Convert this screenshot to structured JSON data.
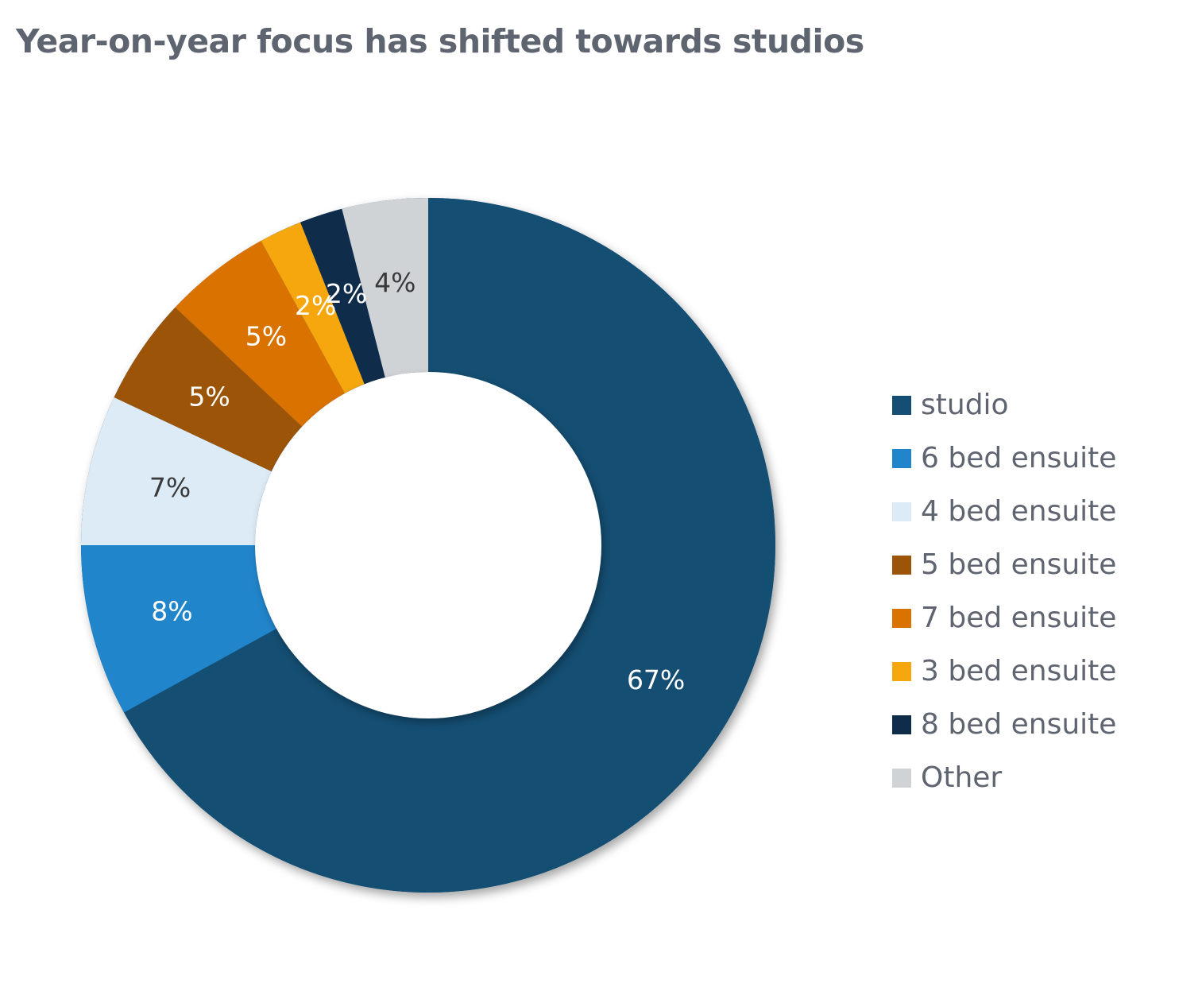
{
  "chart_data": {
    "type": "pie",
    "style": "donut",
    "title": "Year-on-year focus has shifted towards studios",
    "slices": [
      {
        "name": "studio",
        "value": 67,
        "label": "67%",
        "color": "#144e73",
        "label_color": "#ffffff"
      },
      {
        "name": "6 bed ensuite",
        "value": 8,
        "label": "8%",
        "color": "#2185cc",
        "label_color": "#ffffff"
      },
      {
        "name": "4 bed ensuite",
        "value": 7,
        "label": "7%",
        "color": "#ddebf7",
        "label_color": "#3a3a3a"
      },
      {
        "name": "5 bed ensuite",
        "value": 5,
        "label": "5%",
        "color": "#9c5508",
        "label_color": "#ffffff"
      },
      {
        "name": "7 bed ensuite",
        "value": 5,
        "label": "5%",
        "color": "#da7200",
        "label_color": "#ffffff"
      },
      {
        "name": "3 bed ensuite",
        "value": 2,
        "label": "2%",
        "color": "#f5a70d",
        "label_color": "#ffffff"
      },
      {
        "name": "8 bed ensuite",
        "value": 2,
        "label": "2%",
        "color": "#0f2d4b",
        "label_color": "#ffffff"
      },
      {
        "name": "Other",
        "value": 4,
        "label": "4%",
        "color": "#d0d3d6",
        "label_color": "#3a3a3a"
      }
    ],
    "legend_position": "right"
  },
  "legend": {
    "items": [
      {
        "label": "studio",
        "color": "#144e73"
      },
      {
        "label": "6 bed ensuite",
        "color": "#2185cc"
      },
      {
        "label": "4 bed ensuite",
        "color": "#ddebf7"
      },
      {
        "label": "5 bed ensuite",
        "color": "#9c5508"
      },
      {
        "label": "7 bed ensuite",
        "color": "#da7200"
      },
      {
        "label": "3 bed ensuite",
        "color": "#f5a70d"
      },
      {
        "label": "8 bed ensuite",
        "color": "#0f2d4b"
      },
      {
        "label": "Other",
        "color": "#d0d3d6"
      }
    ]
  }
}
